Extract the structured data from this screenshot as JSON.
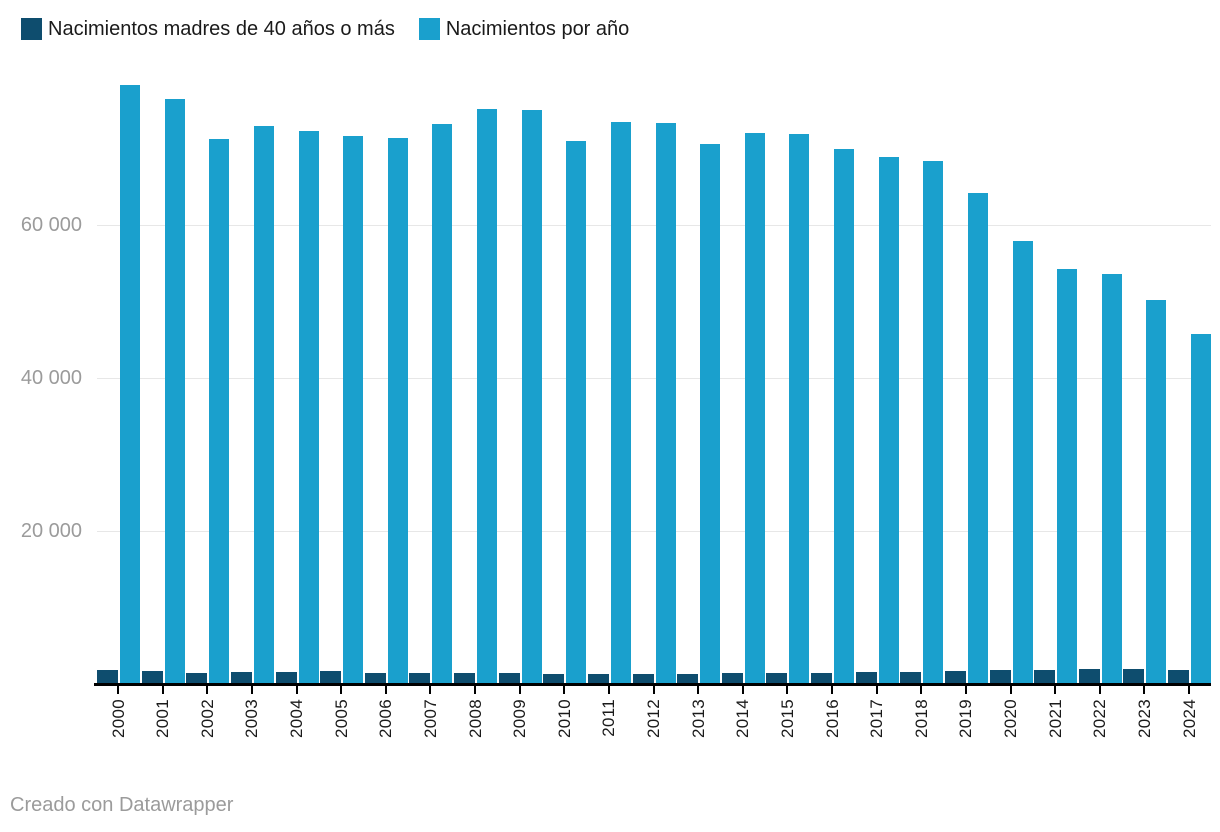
{
  "legend": {
    "items": [
      {
        "label": "Nacimientos madres de 40 años o más",
        "color": "#0e4d6e"
      },
      {
        "label": "Nacimientos por año",
        "color": "#1aa0cd"
      }
    ]
  },
  "footer": {
    "attribution": "Creado con Datawrapper"
  },
  "chart_data": {
    "type": "bar",
    "title": "",
    "xlabel": "",
    "ylabel": "",
    "categories": [
      "2000",
      "2001",
      "2002",
      "2003",
      "2004",
      "2005",
      "2006",
      "2007",
      "2008",
      "2009",
      "2010",
      "2011",
      "2012",
      "2013",
      "2014",
      "2015",
      "2016",
      "2017",
      "2018",
      "2019",
      "2020",
      "2021",
      "2022",
      "2023",
      "2024"
    ],
    "series": [
      {
        "name": "Nacimientos madres de 40 años o más",
        "color": "#0e4d6e",
        "values": [
          1800,
          1700,
          1500,
          1600,
          1600,
          1700,
          1400,
          1400,
          1400,
          1400,
          1300,
          1300,
          1300,
          1300,
          1400,
          1500,
          1500,
          1600,
          1600,
          1700,
          1900,
          1800,
          2000,
          2000,
          1800
        ]
      },
      {
        "name": "Nacimientos por año",
        "color": "#1aa0cd",
        "values": [
          78300,
          76500,
          71300,
          73000,
          72300,
          71600,
          71400,
          73200,
          75200,
          75100,
          71000,
          73500,
          73400,
          70600,
          72000,
          71900,
          70000,
          68900,
          68400,
          64200,
          57900,
          54300,
          53600,
          50200,
          45800
        ]
      }
    ],
    "ylim": [
      0,
      79000
    ],
    "y_ticks": [
      {
        "value": 20000,
        "label": "20 000"
      },
      {
        "value": 40000,
        "label": "40 000"
      },
      {
        "value": 60000,
        "label": "60 000"
      }
    ],
    "grid": true,
    "legend_position": "top",
    "x_tick_label_rotation": -90
  }
}
